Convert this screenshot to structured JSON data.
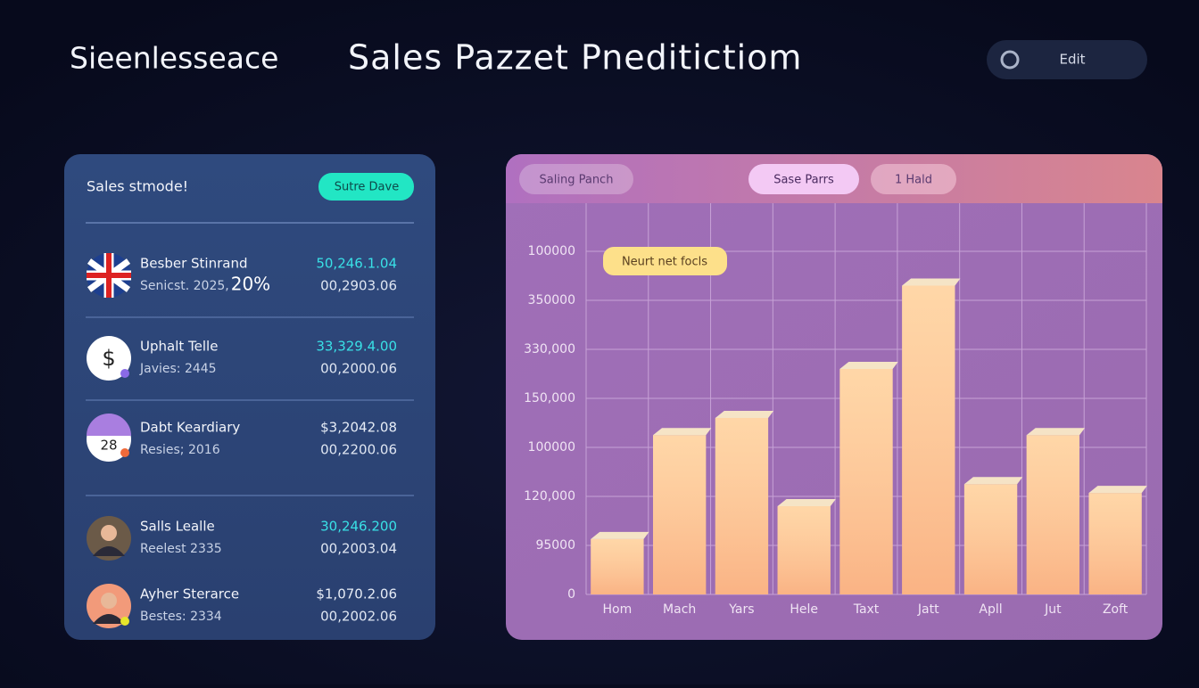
{
  "header": {
    "brand": "Sieenlesseace",
    "title": "Sales Pazzet Pneditictiom",
    "button": "Edit"
  },
  "panel": {
    "title": "Sales stmode!",
    "button": "Sutre Dave",
    "items": [
      {
        "icon": "flag",
        "name": "Besber Stinrand",
        "sub": "Senicst. 2025,",
        "badge": "20%",
        "value": "50,246.1.04",
        "value2": "00,2903.06",
        "value_color": "#39e0e6"
      },
      {
        "icon": "dollar",
        "icon_text": "$",
        "name": "Uphalt Telle",
        "sub": "Javies: 2445",
        "value": "33,329.4.00",
        "value2": "00,2000.06",
        "value_color": "#39e0e6"
      },
      {
        "icon": "calendar",
        "icon_text": "28",
        "name": "Dabt Keardiary",
        "sub": "Resies; 2016",
        "value": "$3,2042.08",
        "value2": "00,2200.06",
        "value_color": "#e6ecf6"
      },
      {
        "icon": "avatar",
        "name": "Salls Lealle",
        "sub": "Reelest 2335",
        "value": "30,246.200",
        "value2": "00,2003.04",
        "value_color": "#39e0e6"
      },
      {
        "icon": "avatar2",
        "name": "Ayher Sterarce",
        "sub": "Bestes: 2334",
        "value": "$1,070.2.06",
        "value2": "00,2002.06",
        "value_color": "#e6ecf6"
      }
    ]
  },
  "chart_data": {
    "type": "bar",
    "tabs": [
      "Saling Panch",
      "Sase Parrs",
      "1 Hald"
    ],
    "annotation": "Neurt net focls",
    "categories": [
      "Hom",
      "Mach",
      "Yars",
      "Hele",
      "Taxt",
      "Jatt",
      "Apll",
      "Jut",
      "Zoft"
    ],
    "values": [
      1.13,
      3.25,
      3.6,
      1.8,
      4.6,
      6.3,
      2.25,
      3.25,
      2.07
    ],
    "color": "#ffc98a",
    "ylim": [
      0,
      7
    ],
    "yticks": [
      {
        "value": 0,
        "label": "0"
      },
      {
        "value": 1,
        "label": "95000"
      },
      {
        "value": 2,
        "label": "120,000"
      },
      {
        "value": 3,
        "label": "100000"
      },
      {
        "value": 4,
        "label": "150,000"
      },
      {
        "value": 5,
        "label": "330,000"
      },
      {
        "value": 6,
        "label": "350000"
      },
      {
        "value": 7,
        "label": "100000"
      }
    ],
    "grid": true
  }
}
